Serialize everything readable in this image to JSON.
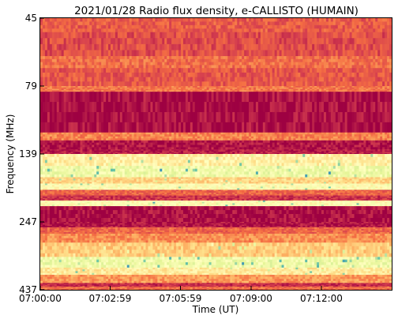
{
  "chart_data": {
    "type": "heatmap",
    "title": "2021/01/28  Radio flux density, e-CALLISTO (HUMAIN)",
    "xlabel": "Time (UT)",
    "ylabel": "Frequency (MHz)",
    "x_ticks": [
      "07:00:00",
      "07:02:59",
      "07:05:59",
      "07:09:00",
      "07:12:00"
    ],
    "x_tick_seconds": [
      0,
      179,
      359,
      540,
      720
    ],
    "x_range_seconds": [
      0,
      900
    ],
    "y_ticks": [
      45,
      79,
      139,
      247,
      437
    ],
    "y_axis": "frequency decreasing downward, nonlinear",
    "colormap": "Spectral",
    "colormap_colors": [
      "#9e0142",
      "#d53e4f",
      "#f46d43",
      "#fdae61",
      "#fee08b",
      "#ffffbf",
      "#e6f598",
      "#abdda4",
      "#66c2a5",
      "#3288bd"
    ],
    "bands": [
      {
        "f_from": 45,
        "f_to": 52,
        "level": 0.18
      },
      {
        "f_from": 52,
        "f_to": 64,
        "level": 0.15
      },
      {
        "f_from": 64,
        "f_to": 70,
        "level": 0.22
      },
      {
        "f_from": 70,
        "f_to": 79,
        "level": 0.17
      },
      {
        "f_from": 79,
        "f_to": 84,
        "level": 0.24
      },
      {
        "f_from": 84,
        "f_to": 120,
        "level": 0.02
      },
      {
        "f_from": 120,
        "f_to": 127,
        "level": 0.26
      },
      {
        "f_from": 127,
        "f_to": 135,
        "level": 0.03
      },
      {
        "f_from": 135,
        "f_to": 139,
        "level": 0.05
      },
      {
        "f_from": 139,
        "f_to": 158,
        "level": 0.5
      },
      {
        "f_from": 158,
        "f_to": 176,
        "level": 0.62
      },
      {
        "f_from": 176,
        "f_to": 186,
        "level": 0.42
      },
      {
        "f_from": 186,
        "f_to": 196,
        "level": 0.55
      },
      {
        "f_from": 196,
        "f_to": 205,
        "level": 0.2
      },
      {
        "f_from": 205,
        "f_to": 213,
        "level": 0.1
      },
      {
        "f_from": 213,
        "f_to": 222,
        "level": 0.55
      },
      {
        "f_from": 222,
        "f_to": 247,
        "level": 0.02
      },
      {
        "f_from": 247,
        "f_to": 262,
        "level": 0.03
      },
      {
        "f_from": 262,
        "f_to": 280,
        "level": 0.2
      },
      {
        "f_from": 280,
        "f_to": 305,
        "level": 0.28
      },
      {
        "f_from": 305,
        "f_to": 345,
        "level": 0.4
      },
      {
        "f_from": 345,
        "f_to": 375,
        "level": 0.62
      },
      {
        "f_from": 375,
        "f_to": 395,
        "level": 0.48
      },
      {
        "f_from": 395,
        "f_to": 418,
        "level": 0.3
      },
      {
        "f_from": 418,
        "f_to": 428,
        "level": 0.08
      },
      {
        "f_from": 428,
        "f_to": 437,
        "level": 0.22
      }
    ],
    "grid": false
  }
}
